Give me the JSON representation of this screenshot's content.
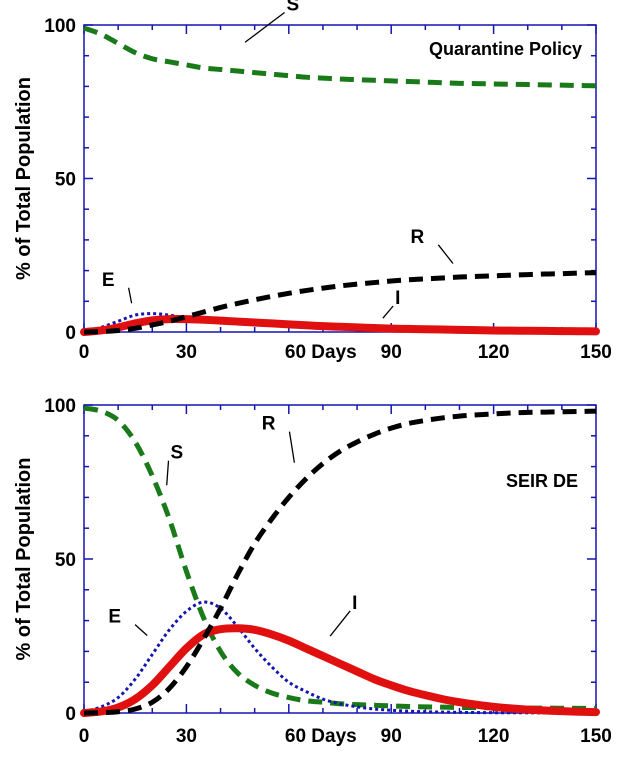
{
  "chart_data": [
    {
      "type": "line",
      "title": "Quarantine Policy",
      "xlabel": "Days",
      "ylabel": "% of Total Population",
      "xlim": [
        0,
        150
      ],
      "ylim": [
        0,
        100
      ],
      "x_ticks": [
        "0",
        "30",
        "60 Days",
        "90",
        "120",
        "150"
      ],
      "y_ticks": [
        "0",
        "50",
        "100"
      ],
      "grid": false,
      "x": [
        0,
        5,
        10,
        15,
        20,
        25,
        30,
        35,
        40,
        45,
        50,
        55,
        60,
        65,
        70,
        75,
        80,
        85,
        90,
        95,
        100,
        105,
        110,
        115,
        120,
        125,
        130,
        135,
        140,
        145,
        150
      ],
      "series": [
        {
          "name": "S",
          "color": "#1a7a1a",
          "style": "dashed",
          "values": [
            99,
            97,
            94,
            91,
            89,
            88,
            87,
            86,
            85.5,
            85,
            84.5,
            84,
            83.5,
            83,
            82.7,
            82.4,
            82.2,
            82,
            81.8,
            81.6,
            81.4,
            81.2,
            81,
            80.9,
            80.8,
            80.7,
            80.6,
            80.5,
            80.4,
            80.3,
            80.2
          ]
        },
        {
          "name": "E",
          "color": "#1515b0",
          "style": "dotted",
          "values": [
            0,
            1.5,
            3.5,
            5.5,
            6,
            5.5,
            4.5,
            3.8,
            3.2,
            2.8,
            2.4,
            2.1,
            1.8,
            1.5,
            1.3,
            1.1,
            0.9,
            0.8,
            0.7,
            0.6,
            0.5,
            0.4,
            0.35,
            0.3,
            0.25,
            0.2,
            0.15,
            0.12,
            0.1,
            0.08,
            0.05
          ]
        },
        {
          "name": "I",
          "color": "#e01010",
          "style": "solid",
          "values": [
            0,
            0.5,
            1.5,
            2.8,
            3.8,
            4.2,
            4.2,
            4,
            3.7,
            3.4,
            3.1,
            2.8,
            2.5,
            2.2,
            1.9,
            1.7,
            1.5,
            1.3,
            1.1,
            1,
            0.9,
            0.8,
            0.7,
            0.6,
            0.5,
            0.45,
            0.4,
            0.35,
            0.3,
            0.25,
            0.2
          ]
        },
        {
          "name": "R",
          "color": "#000000",
          "style": "dashed",
          "values": [
            0,
            0.1,
            0.5,
            1.2,
            2.3,
            3.5,
            5,
            6.5,
            8,
            9.3,
            10.5,
            11.6,
            12.6,
            13.5,
            14.3,
            15,
            15.6,
            16.1,
            16.6,
            17,
            17.3,
            17.6,
            17.9,
            18.1,
            18.3,
            18.5,
            18.7,
            18.9,
            19,
            19.2,
            19.3
          ]
        }
      ]
    },
    {
      "type": "line",
      "title": "SEIR DE",
      "xlabel": "Days",
      "ylabel": "% of Total Population",
      "xlim": [
        0,
        150
      ],
      "ylim": [
        0,
        100
      ],
      "x_ticks": [
        "0",
        "30",
        "60 Days",
        "90",
        "120",
        "150"
      ],
      "y_ticks": [
        "0",
        "50",
        "100"
      ],
      "grid": false,
      "x": [
        0,
        5,
        10,
        15,
        20,
        25,
        30,
        35,
        40,
        45,
        50,
        55,
        60,
        65,
        70,
        75,
        80,
        85,
        90,
        95,
        100,
        105,
        110,
        115,
        120,
        125,
        130,
        135,
        140,
        145,
        150
      ],
      "series": [
        {
          "name": "S",
          "color": "#1a7a1a",
          "style": "dashed",
          "values": [
            99,
            98,
            95,
            88,
            77,
            63,
            46,
            31,
            20,
            13,
            9,
            6.5,
            5,
            4,
            3.5,
            3,
            2.7,
            2.5,
            2.3,
            2.1,
            2,
            1.9,
            1.8,
            1.75,
            1.7,
            1.65,
            1.6,
            1.58,
            1.55,
            1.52,
            1.5
          ]
        },
        {
          "name": "E",
          "color": "#1515b0",
          "style": "dotted",
          "values": [
            0.5,
            2,
            5,
            11,
            19,
            27,
            33,
            36,
            34,
            28,
            21,
            15,
            10,
            7,
            4.5,
            3,
            2,
            1.3,
            0.9,
            0.6,
            0.4,
            0.3,
            0.2,
            0.15,
            0.1,
            0.08,
            0.06,
            0.05,
            0.04,
            0.03,
            0.02
          ]
        },
        {
          "name": "I",
          "color": "#e01010",
          "style": "solid",
          "values": [
            0,
            0.5,
            1.8,
            4.5,
            9,
            15,
            21,
            25.5,
            27.2,
            27.5,
            27,
            25.5,
            23.5,
            21,
            18.5,
            16,
            13.5,
            11,
            9,
            7.2,
            5.8,
            4.5,
            3.5,
            2.7,
            2,
            1.5,
            1.1,
            0.8,
            0.6,
            0.4,
            0.3
          ]
        },
        {
          "name": "R",
          "color": "#000000",
          "style": "dashed",
          "values": [
            0,
            0.1,
            0.4,
            1.3,
            3.5,
            8,
            15,
            24,
            34,
            45,
            55,
            63,
            70,
            76,
            81,
            85,
            88,
            90.5,
            92.5,
            94,
            95,
            95.8,
            96.4,
            96.8,
            97.1,
            97.4,
            97.6,
            97.7,
            97.8,
            97.9,
            98
          ]
        }
      ]
    }
  ]
}
